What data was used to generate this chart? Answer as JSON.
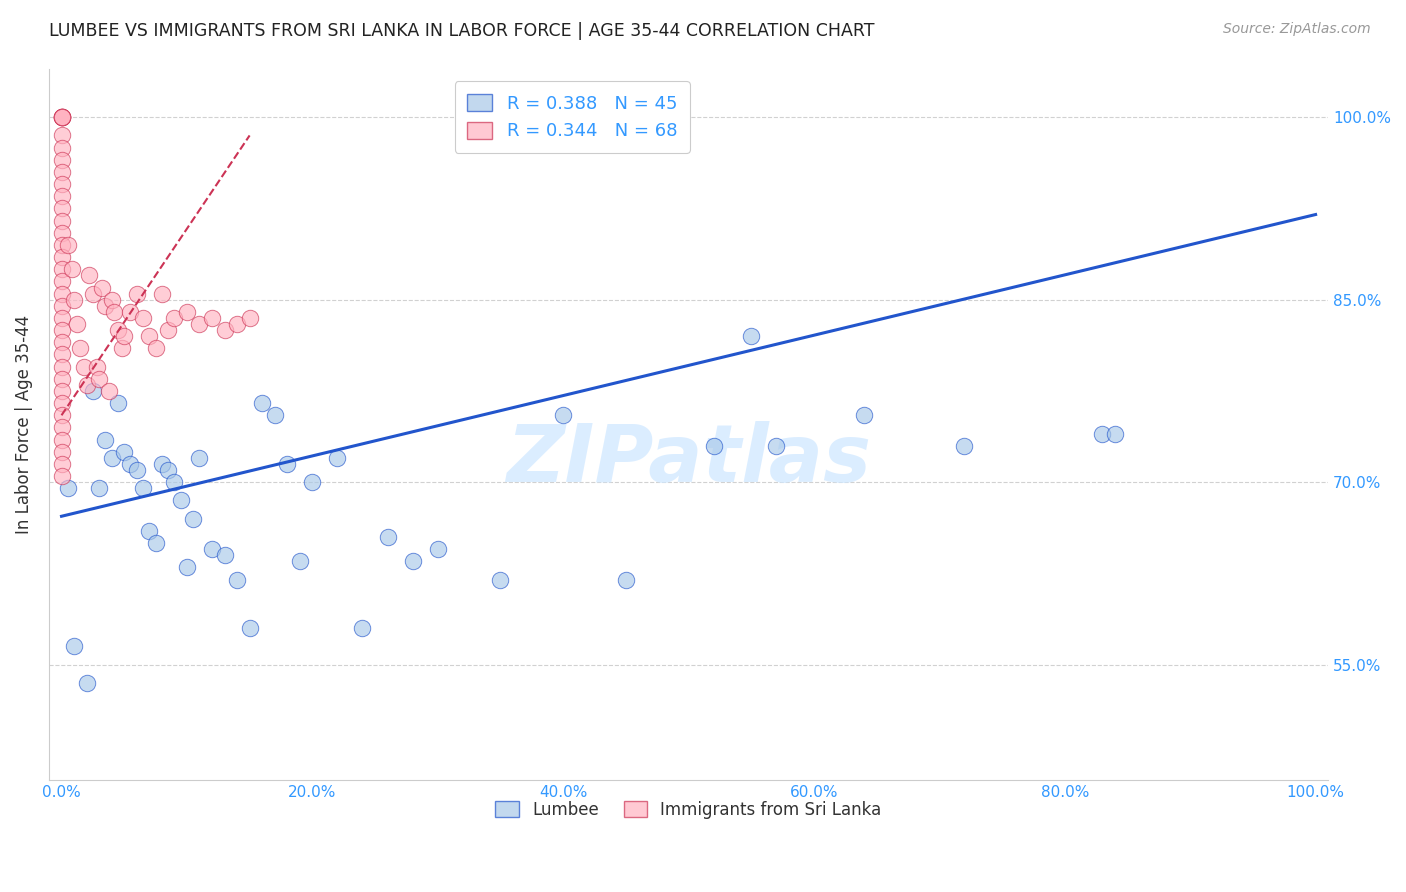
{
  "title": "LUMBEE VS IMMIGRANTS FROM SRI LANKA IN LABOR FORCE | AGE 35-44 CORRELATION CHART",
  "source": "Source: ZipAtlas.com",
  "ylabel": "In Labor Force | Age 35-44",
  "xlabel_lumbee": "Lumbee",
  "xlabel_srilanka": "Immigrants from Sri Lanka",
  "xlim": [
    -0.01,
    1.01
  ],
  "ylim": [
    0.455,
    1.04
  ],
  "xticks": [
    0.0,
    0.2,
    0.4,
    0.6,
    0.8,
    1.0
  ],
  "xtick_labels": [
    "0.0%",
    "20.0%",
    "40.0%",
    "60.0%",
    "80.0%",
    "100.0%"
  ],
  "ytick_labels_right": [
    "55.0%",
    "70.0%",
    "85.0%",
    "100.0%"
  ],
  "yticks": [
    0.55,
    0.7,
    0.85,
    1.0
  ],
  "legend_R_lumbee": "R = 0.388",
  "legend_N_lumbee": "N = 45",
  "legend_R_srilanka": "R = 0.344",
  "legend_N_srilanka": "N = 68",
  "blue_color": "#A8C8E8",
  "pink_color": "#FFB3C1",
  "line_color": "#2255CC",
  "pink_line_color": "#CC3355",
  "title_color": "#222222",
  "axis_label_color": "#3399FF",
  "watermark": "ZIPatlas",
  "lumbee_x": [
    0.005,
    0.01,
    0.02,
    0.025,
    0.03,
    0.035,
    0.04,
    0.045,
    0.05,
    0.055,
    0.06,
    0.065,
    0.07,
    0.075,
    0.08,
    0.085,
    0.09,
    0.095,
    0.1,
    0.105,
    0.11,
    0.12,
    0.13,
    0.14,
    0.15,
    0.16,
    0.17,
    0.18,
    0.19,
    0.2,
    0.22,
    0.24,
    0.26,
    0.28,
    0.3,
    0.35,
    0.4,
    0.45,
    0.52,
    0.55,
    0.57,
    0.64,
    0.72,
    0.83,
    0.84
  ],
  "lumbee_y": [
    0.695,
    0.565,
    0.535,
    0.775,
    0.695,
    0.735,
    0.72,
    0.765,
    0.725,
    0.715,
    0.71,
    0.695,
    0.66,
    0.65,
    0.715,
    0.71,
    0.7,
    0.685,
    0.63,
    0.67,
    0.72,
    0.645,
    0.64,
    0.62,
    0.58,
    0.765,
    0.755,
    0.715,
    0.635,
    0.7,
    0.72,
    0.58,
    0.655,
    0.635,
    0.645,
    0.62,
    0.755,
    0.62,
    0.73,
    0.82,
    0.73,
    0.755,
    0.73,
    0.74,
    0.74
  ],
  "srilanka_x": [
    0.0,
    0.0,
    0.0,
    0.0,
    0.0,
    0.0,
    0.0,
    0.0,
    0.0,
    0.0,
    0.0,
    0.0,
    0.0,
    0.0,
    0.0,
    0.0,
    0.0,
    0.0,
    0.0,
    0.0,
    0.0,
    0.0,
    0.0,
    0.0,
    0.0,
    0.0,
    0.0,
    0.0,
    0.0,
    0.0,
    0.0,
    0.0,
    0.0,
    0.0,
    0.0,
    0.005,
    0.008,
    0.01,
    0.012,
    0.015,
    0.018,
    0.02,
    0.022,
    0.025,
    0.028,
    0.03,
    0.032,
    0.035,
    0.038,
    0.04,
    0.042,
    0.045,
    0.048,
    0.05,
    0.055,
    0.06,
    0.065,
    0.07,
    0.075,
    0.08,
    0.085,
    0.09,
    0.1,
    0.11,
    0.12,
    0.13,
    0.14,
    0.15
  ],
  "srilanka_y": [
    1.0,
    1.0,
    1.0,
    1.0,
    1.0,
    1.0,
    0.985,
    0.975,
    0.965,
    0.955,
    0.945,
    0.935,
    0.925,
    0.915,
    0.905,
    0.895,
    0.885,
    0.875,
    0.865,
    0.855,
    0.845,
    0.835,
    0.825,
    0.815,
    0.805,
    0.795,
    0.785,
    0.775,
    0.765,
    0.755,
    0.745,
    0.735,
    0.725,
    0.715,
    0.705,
    0.895,
    0.875,
    0.85,
    0.83,
    0.81,
    0.795,
    0.78,
    0.87,
    0.855,
    0.795,
    0.785,
    0.86,
    0.845,
    0.775,
    0.85,
    0.84,
    0.825,
    0.81,
    0.82,
    0.84,
    0.855,
    0.835,
    0.82,
    0.81,
    0.855,
    0.825,
    0.835,
    0.84,
    0.83,
    0.835,
    0.825,
    0.83,
    0.835
  ],
  "blue_trendline_x": [
    0.0,
    1.0
  ],
  "blue_trendline_y": [
    0.672,
    0.92
  ],
  "pink_trendline_x": [
    0.0,
    0.15
  ],
  "pink_trendline_y": [
    0.755,
    0.985
  ]
}
